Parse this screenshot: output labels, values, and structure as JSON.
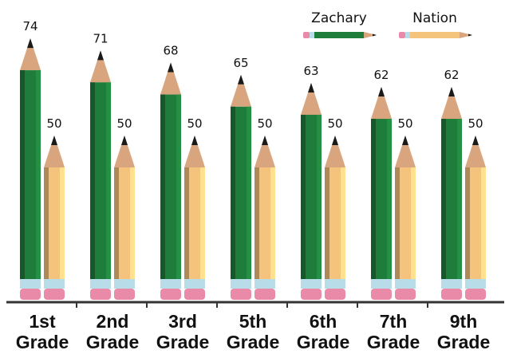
{
  "chart_data": {
    "type": "pencil-bar",
    "categories": [
      "1st Grade",
      "2nd Grade",
      "3rd Grade",
      "5th Grade",
      "6th Grade",
      "7th Grade",
      "9th Grade"
    ],
    "series": [
      {
        "name": "Zachary",
        "color": "#1f7d3b",
        "values": [
          74,
          71,
          68,
          65,
          63,
          62,
          62
        ]
      },
      {
        "name": "Nation",
        "color": "#f5c47c",
        "values": [
          50,
          50,
          50,
          50,
          50,
          50,
          50
        ]
      }
    ]
  }
}
